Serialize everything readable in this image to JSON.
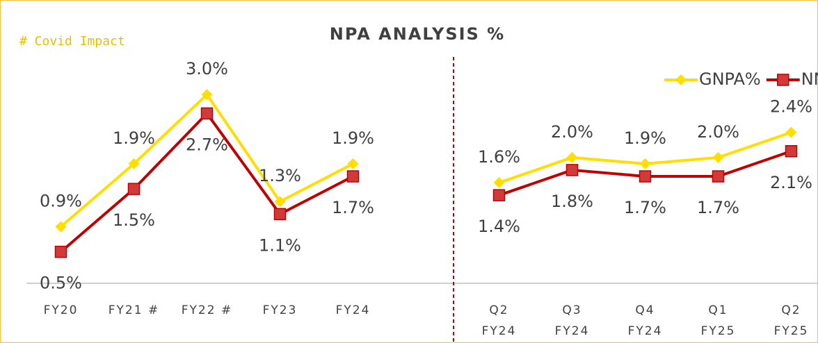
{
  "chart_data": [
    {
      "type": "line",
      "title": "NPA ANALYSIS %",
      "annotation": "# Covid Impact",
      "categories": [
        "FY20",
        "FY21 #",
        "FY22 #",
        "FY23",
        "FY24"
      ],
      "ylim": [
        0,
        3.4
      ],
      "legend": "none",
      "series": [
        {
          "name": "GNPA%",
          "color": "#ffde00",
          "values": [
            0.9,
            1.9,
            3.0,
            1.3,
            1.9
          ],
          "value_labels": [
            "0.9%",
            "1.9%",
            "3.0%",
            "1.3%",
            "1.9%"
          ]
        },
        {
          "name": "NNPA%",
          "color": "#c00000",
          "values": [
            0.5,
            1.5,
            2.7,
            1.1,
            1.7
          ],
          "value_labels": [
            "0.5%",
            "1.5%",
            "2.7%",
            "1.1%",
            "1.7%"
          ]
        }
      ]
    },
    {
      "type": "line",
      "categories": [
        "Q2 FY24",
        "Q3 FY24",
        "Q4 FY24",
        "Q1 FY25",
        "Q2 FY25"
      ],
      "ylim": [
        0,
        3.4
      ],
      "legend": "top-right",
      "series": [
        {
          "name": "GNPA%",
          "color": "#ffde00",
          "values": [
            1.6,
            2.0,
            1.9,
            2.0,
            2.4
          ],
          "value_labels": [
            "1.6%",
            "2.0%",
            "1.9%",
            "2.0%",
            "2.4%"
          ]
        },
        {
          "name": "NNPA%",
          "color": "#c00000",
          "values": [
            1.4,
            1.8,
            1.7,
            1.7,
            2.1
          ],
          "value_labels": [
            "1.4%",
            "1.8%",
            "1.7%",
            "1.7%",
            "2.1%"
          ]
        }
      ]
    }
  ]
}
